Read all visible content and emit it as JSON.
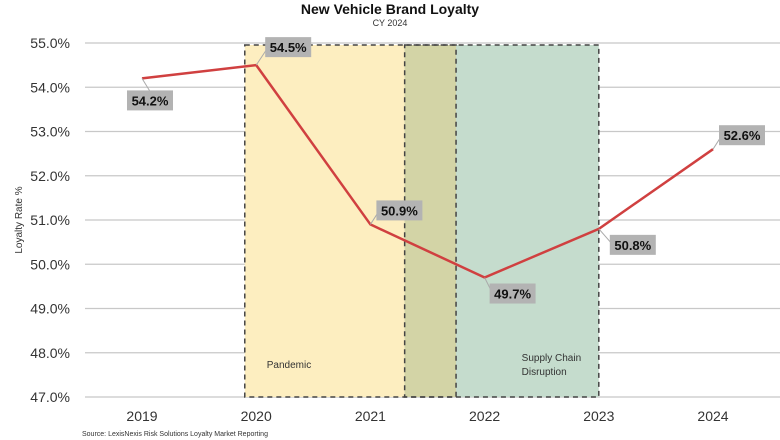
{
  "chart_data": {
    "type": "line",
    "title": "New Vehicle Brand Loyalty",
    "subtitle": "CY 2024",
    "ylabel": "Loyalty Rate %",
    "xlabel": "",
    "categories": [
      "2019",
      "2020",
      "2021",
      "2022",
      "2023",
      "2024"
    ],
    "values": [
      54.2,
      54.5,
      50.9,
      49.7,
      50.8,
      52.6
    ],
    "data_labels": [
      "54.2%",
      "54.5%",
      "50.9%",
      "49.7%",
      "50.8%",
      "52.6%"
    ],
    "ylim": [
      47.0,
      55.0
    ],
    "yticks": [
      "47.0%",
      "48.0%",
      "49.0%",
      "50.0%",
      "51.0%",
      "52.0%",
      "53.0%",
      "54.0%",
      "55.0%"
    ],
    "grid": true,
    "line_color": "#d04040",
    "shaded_regions": [
      {
        "label": "Pandemic",
        "from": 2019.9,
        "to": 2021.75,
        "color": "#fdeec0"
      },
      {
        "label": "Supply Chain Disruption",
        "label_lines": [
          "Supply Chain",
          "Disruption"
        ],
        "from": 2021.3,
        "to": 2023.0,
        "color": "#c5dccd"
      }
    ],
    "overlap_color": "#d3d4a6",
    "source": "Source: LexisNexis Risk Solutions Loyalty Market Reporting"
  }
}
